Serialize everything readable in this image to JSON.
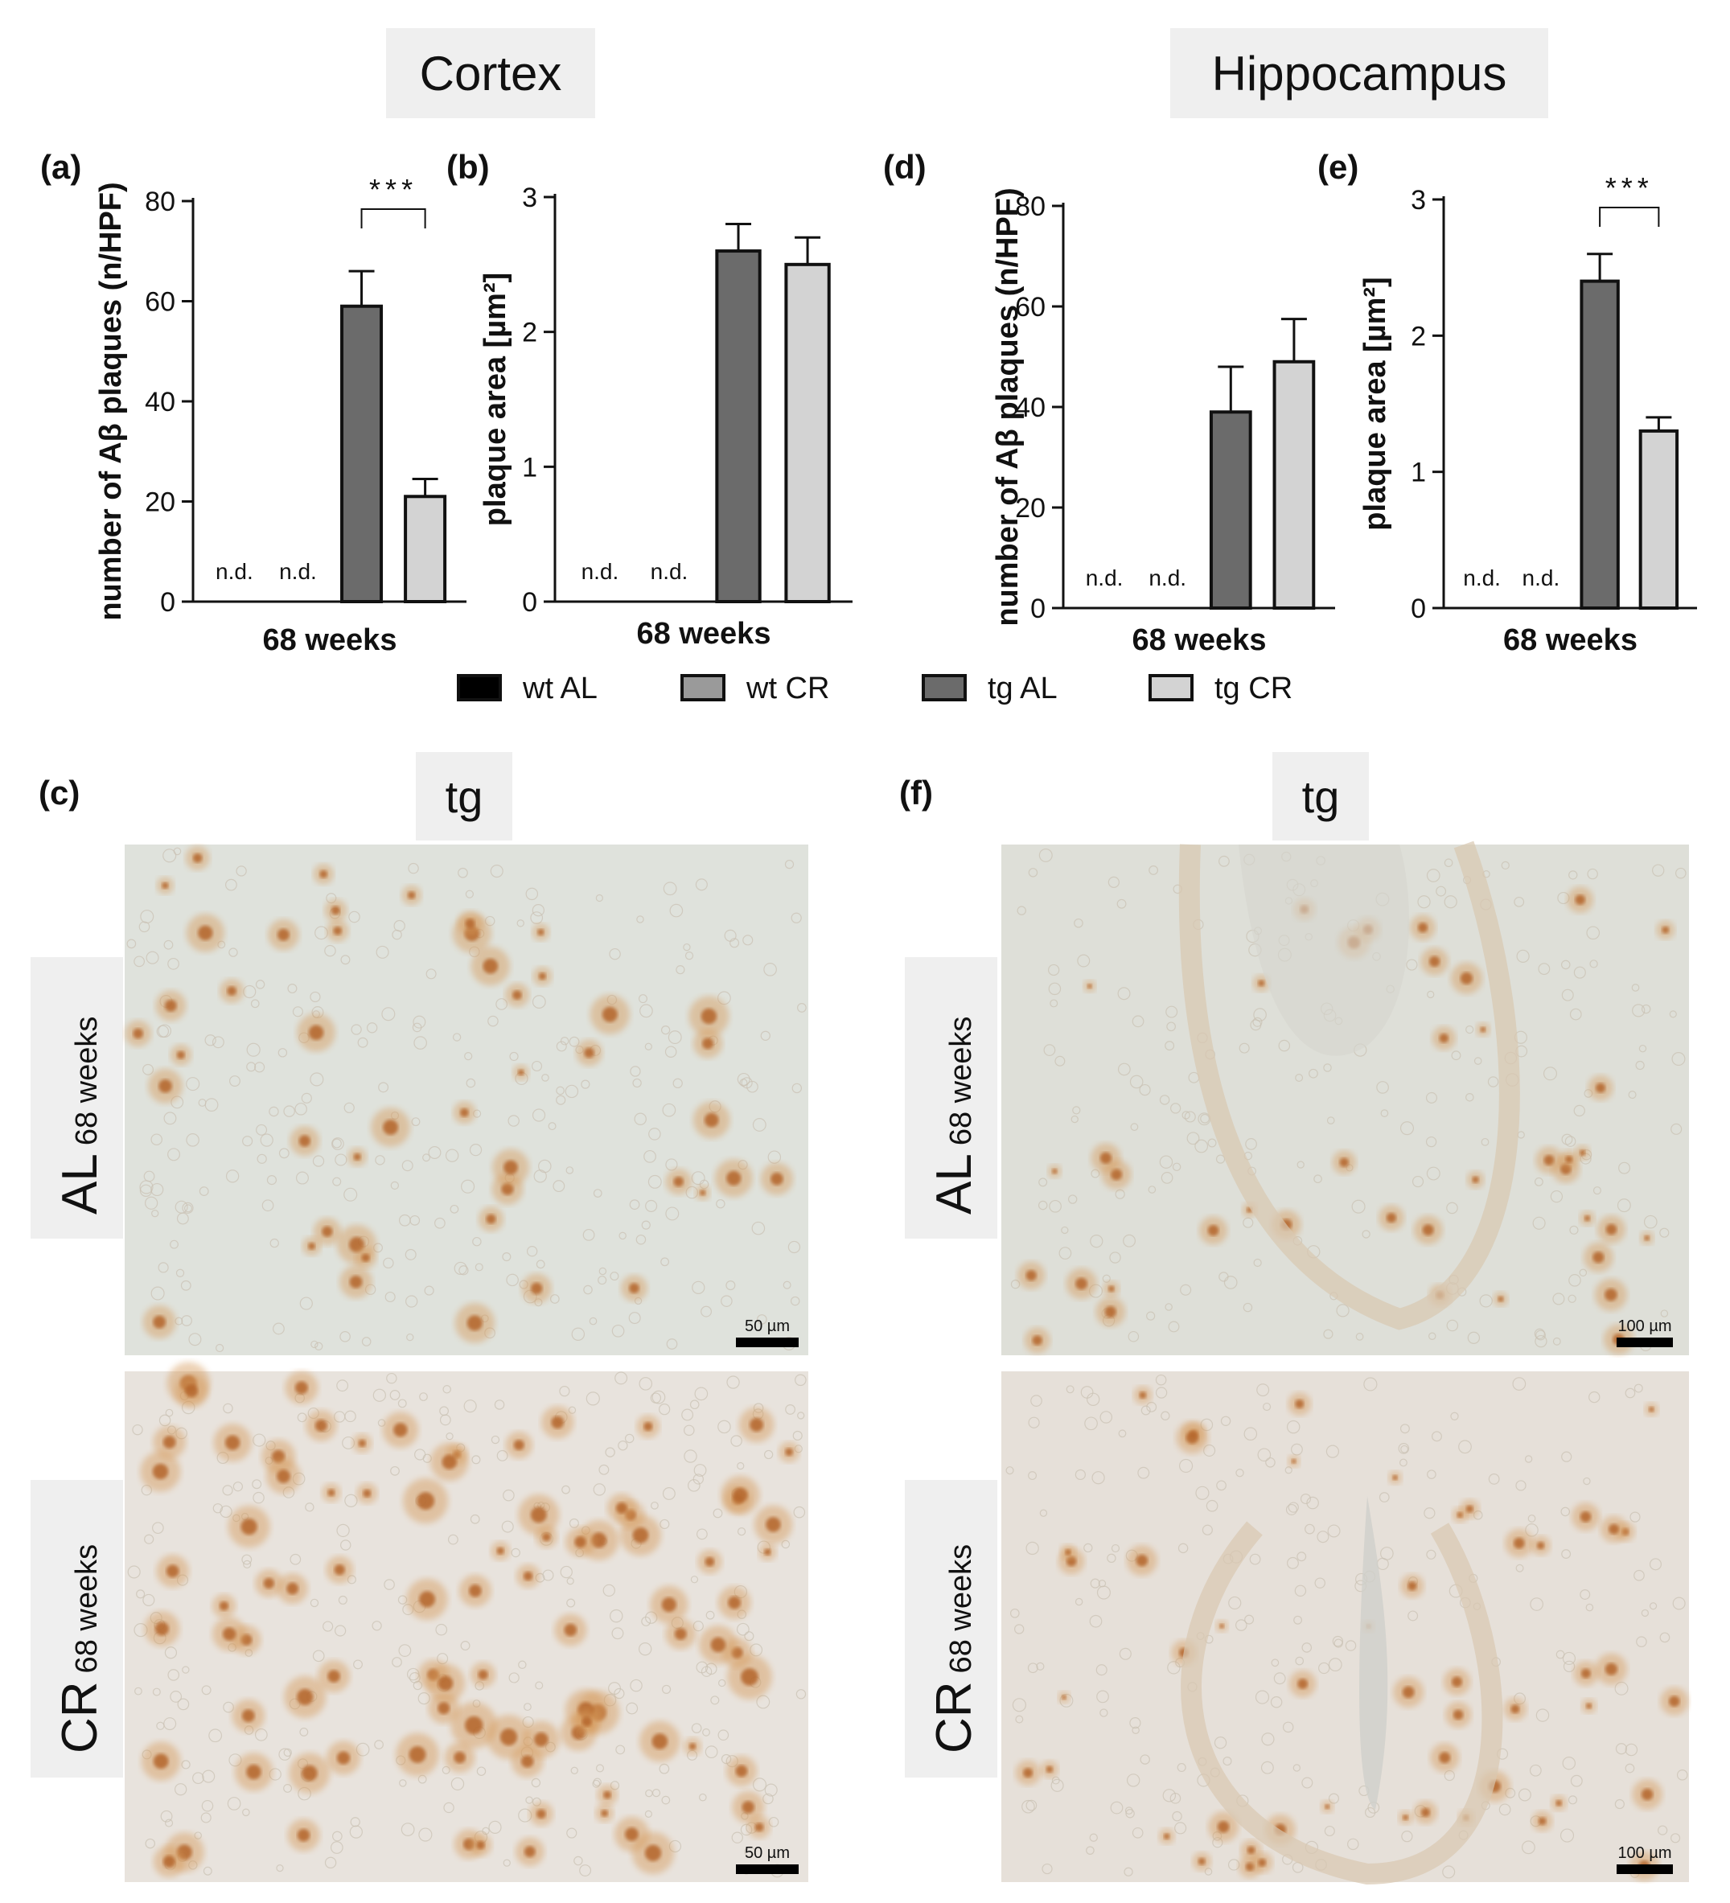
{
  "headers": {
    "cortex": "Cortex",
    "hippocampus": "Hippocampus"
  },
  "panel_labels": {
    "a": "(a)",
    "b": "(b)",
    "c": "(c)",
    "d": "(d)",
    "e": "(e)",
    "f": "(f)"
  },
  "nd_text": "n.d.",
  "legend": [
    {
      "name": "wt AL",
      "color": "#000000"
    },
    {
      "name": "wt CR",
      "color": "#9a9a9a"
    },
    {
      "name": "tg AL",
      "color": "#6b6b6b"
    },
    {
      "name": "tg CR",
      "color": "#d3d3d3"
    }
  ],
  "chart_data": [
    {
      "panel": "(a)",
      "type": "bar",
      "categories": [
        "68 weeks"
      ],
      "ylabel": "number of Aβ plaques (n/HPF)",
      "ylim": [
        0,
        80
      ],
      "yticks": [
        0,
        20,
        40,
        60,
        80
      ],
      "series": [
        {
          "name": "wt AL",
          "values": [
            null
          ],
          "note": "n.d."
        },
        {
          "name": "wt CR",
          "values": [
            null
          ],
          "note": "n.d."
        },
        {
          "name": "tg AL",
          "values": [
            59
          ],
          "error": [
            7
          ]
        },
        {
          "name": "tg CR",
          "values": [
            21
          ],
          "error": [
            3.5
          ]
        }
      ],
      "significance": "***"
    },
    {
      "panel": "(b)",
      "type": "bar",
      "categories": [
        "68 weeks"
      ],
      "ylabel": "plaque area [µm²]",
      "ylim": [
        0,
        3
      ],
      "yticks": [
        0,
        1,
        2,
        3
      ],
      "series": [
        {
          "name": "wt AL",
          "values": [
            null
          ],
          "note": "n.d."
        },
        {
          "name": "wt CR",
          "values": [
            null
          ],
          "note": "n.d."
        },
        {
          "name": "tg AL",
          "values": [
            2.6
          ],
          "error": [
            0.2
          ]
        },
        {
          "name": "tg CR",
          "values": [
            2.5
          ],
          "error": [
            0.2
          ]
        }
      ],
      "significance": ""
    },
    {
      "panel": "(d)",
      "type": "bar",
      "categories": [
        "68 weeks"
      ],
      "ylabel": "number of Aβ plaques (n/HPF)",
      "ylim": [
        0,
        80
      ],
      "yticks": [
        0,
        20,
        40,
        60,
        80
      ],
      "series": [
        {
          "name": "wt AL",
          "values": [
            null
          ],
          "note": "n.d."
        },
        {
          "name": "wt CR",
          "values": [
            null
          ],
          "note": "n.d."
        },
        {
          "name": "tg AL",
          "values": [
            39
          ],
          "error": [
            9
          ]
        },
        {
          "name": "tg CR",
          "values": [
            49
          ],
          "error": [
            8.5
          ]
        }
      ],
      "significance": ""
    },
    {
      "panel": "(e)",
      "type": "bar",
      "categories": [
        "68 weeks"
      ],
      "ylabel": "plaque area [µm²]",
      "ylim": [
        0,
        3
      ],
      "yticks": [
        0,
        1,
        2,
        3
      ],
      "series": [
        {
          "name": "wt AL",
          "values": [
            null
          ],
          "note": "n.d."
        },
        {
          "name": "wt CR",
          "values": [
            null
          ],
          "note": "n.d."
        },
        {
          "name": "tg AL",
          "values": [
            2.4
          ],
          "error": [
            0.2
          ]
        },
        {
          "name": "tg CR",
          "values": [
            1.3
          ],
          "error": [
            0.1
          ]
        }
      ],
      "significance": "***"
    }
  ],
  "micrographs": {
    "column_label": "tg",
    "row_labels": [
      {
        "main": "AL",
        "sub": "68 weeks"
      },
      {
        "main": "CR",
        "sub": "68 weeks"
      }
    ],
    "scale_cortex": "50 µm",
    "scale_hippocampus": "100 µm"
  }
}
